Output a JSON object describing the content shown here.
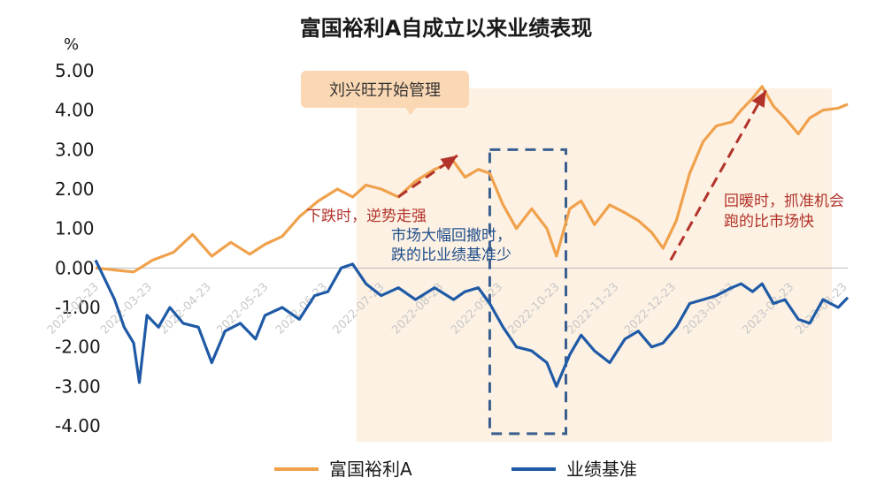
{
  "chart_data": {
    "type": "line",
    "title": "富国裕利A自成立以来业绩表现",
    "ylabel": "%",
    "ylim": [
      -4.0,
      5.0
    ],
    "yticks": [
      "5.00",
      "4.00",
      "3.00",
      "2.00",
      "1.00",
      "0.00",
      "-1.00",
      "-2.00",
      "-3.00",
      "-4.00"
    ],
    "x_range": [
      "2022-02-23",
      "2023-03-25"
    ],
    "xticks": [
      "2022-02-23",
      "2022-03-23",
      "2022-04-23",
      "2022-05-23",
      "2022-06-23",
      "2022-07-23",
      "2022-08-23",
      "2022-09-23",
      "2022-10-23",
      "2022-11-23",
      "2022-12-23",
      "2023-01-23",
      "2023-02-23",
      "2023-03-23"
    ],
    "grid": false,
    "legend_position": "bottom",
    "series": [
      {
        "name": "富国裕利A",
        "color": "#f0a14b",
        "points": [
          [
            "2022-02-23",
            0.0
          ],
          [
            "2022-03-05",
            -0.05
          ],
          [
            "2022-03-15",
            -0.1
          ],
          [
            "2022-03-25",
            0.2
          ],
          [
            "2022-04-05",
            0.4
          ],
          [
            "2022-04-15",
            0.85
          ],
          [
            "2022-04-25",
            0.3
          ],
          [
            "2022-05-05",
            0.65
          ],
          [
            "2022-05-15",
            0.35
          ],
          [
            "2022-05-23",
            0.6
          ],
          [
            "2022-06-01",
            0.8
          ],
          [
            "2022-06-10",
            1.3
          ],
          [
            "2022-06-20",
            1.7
          ],
          [
            "2022-06-30",
            2.0
          ],
          [
            "2022-07-08",
            1.8
          ],
          [
            "2022-07-15",
            2.1
          ],
          [
            "2022-07-23",
            2.0
          ],
          [
            "2022-08-01",
            1.8
          ],
          [
            "2022-08-10",
            2.2
          ],
          [
            "2022-08-20",
            2.5
          ],
          [
            "2022-08-30",
            2.7
          ],
          [
            "2022-09-05",
            2.3
          ],
          [
            "2022-09-12",
            2.5
          ],
          [
            "2022-09-18",
            2.4
          ],
          [
            "2022-09-25",
            1.6
          ],
          [
            "2022-10-02",
            1.0
          ],
          [
            "2022-10-10",
            1.5
          ],
          [
            "2022-10-18",
            1.0
          ],
          [
            "2022-10-23",
            0.3
          ],
          [
            "2022-10-30",
            1.5
          ],
          [
            "2022-11-05",
            1.7
          ],
          [
            "2022-11-12",
            1.1
          ],
          [
            "2022-11-20",
            1.6
          ],
          [
            "2022-11-28",
            1.4
          ],
          [
            "2022-12-05",
            1.2
          ],
          [
            "2022-12-12",
            0.9
          ],
          [
            "2022-12-18",
            0.5
          ],
          [
            "2022-12-25",
            1.2
          ],
          [
            "2023-01-01",
            2.4
          ],
          [
            "2023-01-08",
            3.2
          ],
          [
            "2023-01-15",
            3.6
          ],
          [
            "2023-01-23",
            3.7
          ],
          [
            "2023-01-28",
            4.0
          ],
          [
            "2023-02-03",
            4.3
          ],
          [
            "2023-02-08",
            4.6
          ],
          [
            "2023-02-14",
            4.1
          ],
          [
            "2023-02-20",
            3.8
          ],
          [
            "2023-02-27",
            3.4
          ],
          [
            "2023-03-05",
            3.8
          ],
          [
            "2023-03-12",
            4.0
          ],
          [
            "2023-03-20",
            4.05
          ],
          [
            "2023-03-25",
            4.15
          ]
        ]
      },
      {
        "name": "业绩基准",
        "color": "#1f5aa6",
        "points": [
          [
            "2022-02-23",
            0.2
          ],
          [
            "2022-02-28",
            -0.3
          ],
          [
            "2022-03-05",
            -0.8
          ],
          [
            "2022-03-10",
            -1.5
          ],
          [
            "2022-03-15",
            -1.9
          ],
          [
            "2022-03-18",
            -2.9
          ],
          [
            "2022-03-22",
            -1.2
          ],
          [
            "2022-03-28",
            -1.5
          ],
          [
            "2022-04-03",
            -1.0
          ],
          [
            "2022-04-10",
            -1.4
          ],
          [
            "2022-04-18",
            -1.5
          ],
          [
            "2022-04-25",
            -2.4
          ],
          [
            "2022-05-02",
            -1.6
          ],
          [
            "2022-05-10",
            -1.4
          ],
          [
            "2022-05-18",
            -1.8
          ],
          [
            "2022-05-23",
            -1.2
          ],
          [
            "2022-06-01",
            -1.0
          ],
          [
            "2022-06-10",
            -1.3
          ],
          [
            "2022-06-18",
            -0.7
          ],
          [
            "2022-06-25",
            -0.6
          ],
          [
            "2022-07-02",
            0.0
          ],
          [
            "2022-07-08",
            0.1
          ],
          [
            "2022-07-15",
            -0.4
          ],
          [
            "2022-07-23",
            -0.7
          ],
          [
            "2022-08-01",
            -0.5
          ],
          [
            "2022-08-10",
            -0.8
          ],
          [
            "2022-08-20",
            -0.5
          ],
          [
            "2022-08-30",
            -0.8
          ],
          [
            "2022-09-05",
            -0.6
          ],
          [
            "2022-09-12",
            -0.5
          ],
          [
            "2022-09-18",
            -0.9
          ],
          [
            "2022-09-25",
            -1.5
          ],
          [
            "2022-10-02",
            -2.0
          ],
          [
            "2022-10-10",
            -2.1
          ],
          [
            "2022-10-18",
            -2.4
          ],
          [
            "2022-10-23",
            -3.0
          ],
          [
            "2022-10-30",
            -2.2
          ],
          [
            "2022-11-05",
            -1.7
          ],
          [
            "2022-11-12",
            -2.1
          ],
          [
            "2022-11-20",
            -2.4
          ],
          [
            "2022-11-28",
            -1.8
          ],
          [
            "2022-12-05",
            -1.6
          ],
          [
            "2022-12-12",
            -2.0
          ],
          [
            "2022-12-18",
            -1.9
          ],
          [
            "2022-12-25",
            -1.5
          ],
          [
            "2023-01-01",
            -0.9
          ],
          [
            "2023-01-08",
            -0.8
          ],
          [
            "2023-01-15",
            -0.7
          ],
          [
            "2023-01-23",
            -0.5
          ],
          [
            "2023-01-28",
            -0.4
          ],
          [
            "2023-02-03",
            -0.6
          ],
          [
            "2023-02-08",
            -0.4
          ],
          [
            "2023-02-14",
            -0.9
          ],
          [
            "2023-02-20",
            -0.8
          ],
          [
            "2023-02-27",
            -1.3
          ],
          [
            "2023-03-05",
            -1.4
          ],
          [
            "2023-03-12",
            -0.8
          ],
          [
            "2023-03-20",
            -1.0
          ],
          [
            "2023-03-25",
            -0.75
          ]
        ]
      }
    ],
    "highlight_region": {
      "from": "2022-07-10",
      "to": "2023-03-25",
      "color": "#fdf1e3"
    },
    "dashed_box": {
      "from": "2022-09-18",
      "to": "2022-10-28",
      "ymin": -4.2,
      "ymax": 3.0,
      "color": "#3a5f8f"
    },
    "trend_arrows": [
      {
        "from": [
          "2022-08-01",
          1.8
        ],
        "to": [
          "2022-09-01",
          2.85
        ],
        "color": "#b2332a"
      },
      {
        "from": [
          "2022-12-22",
          0.2
        ],
        "to": [
          "2023-02-10",
          4.5
        ],
        "color": "#b2332a"
      }
    ],
    "annotations": {
      "callout": "刘兴旺开始管理",
      "fall_strong": "下跌时，逆势走强",
      "market_drop": [
        "市场大幅回撤时，",
        "跌的比业绩基准少"
      ],
      "rebound": [
        "回暖时，抓准机会",
        "跑的比市场快"
      ]
    }
  }
}
